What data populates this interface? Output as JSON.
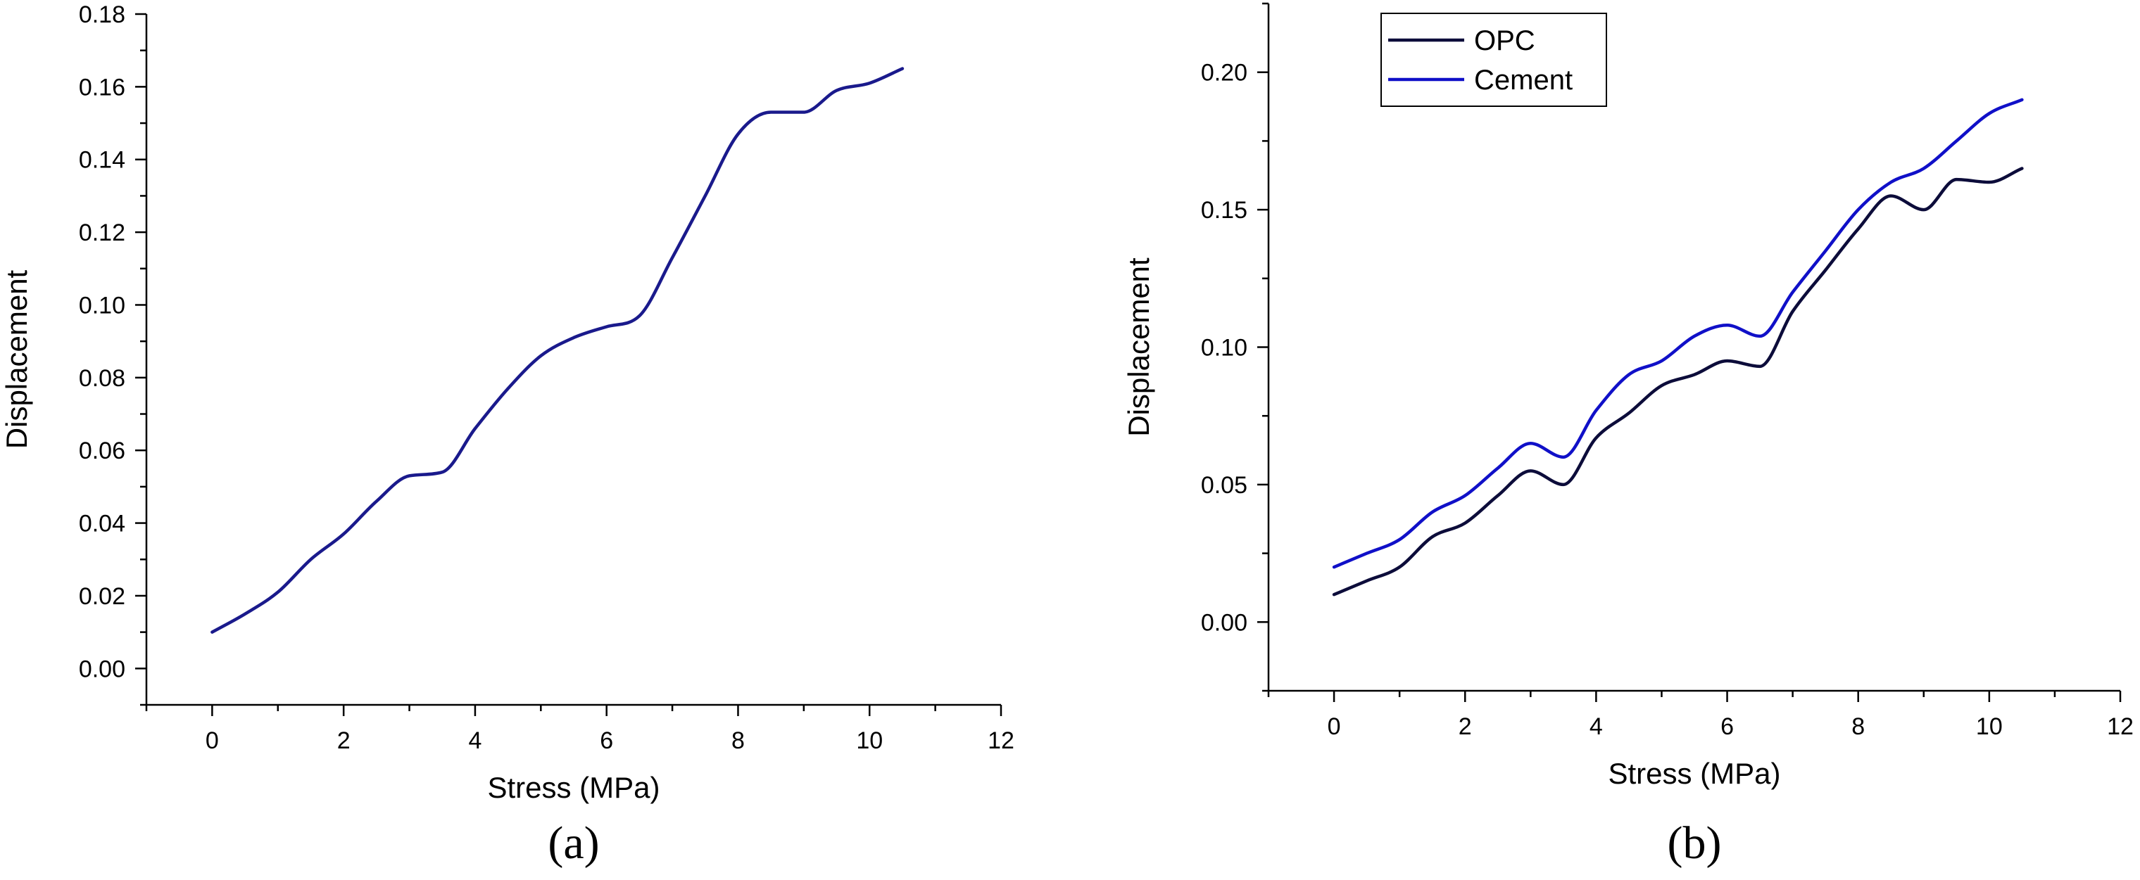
{
  "chart_data": [
    {
      "type": "line",
      "panel_label": "(a)",
      "xlabel": "Stress (MPa)",
      "ylabel": "Displacement",
      "xlim": [
        -1,
        12
      ],
      "ylim": [
        -0.01,
        0.18
      ],
      "xticks": [
        0,
        2,
        4,
        6,
        8,
        10,
        12
      ],
      "xtick_labels": [
        "0",
        "2",
        "4",
        "6",
        "8",
        "10",
        "12"
      ],
      "yticks": [
        0,
        0.02,
        0.04,
        0.06,
        0.08,
        0.1,
        0.12,
        0.14,
        0.16,
        0.18
      ],
      "ytick_labels": [
        "0.00",
        "0.02",
        "0.04",
        "0.06",
        "0.08",
        "0.10",
        "0.12",
        "0.14",
        "0.16",
        "0.18"
      ],
      "grid": false,
      "legend": false,
      "series": [
        {
          "color": "#1a1a8c",
          "x": [
            0,
            0.5,
            1,
            1.5,
            2,
            2.5,
            3,
            3.5,
            4,
            4.5,
            5,
            5.5,
            6,
            6.5,
            7,
            7.5,
            8,
            8.5,
            9,
            9.5,
            10,
            10.5
          ],
          "y": [
            0.01,
            0.015,
            0.021,
            0.03,
            0.037,
            0.046,
            0.053,
            0.054,
            0.066,
            0.077,
            0.086,
            0.091,
            0.094,
            0.097,
            0.113,
            0.13,
            0.147,
            0.153,
            0.153,
            0.159,
            0.161,
            0.165
          ]
        }
      ]
    },
    {
      "type": "line",
      "panel_label": "(b)",
      "xlabel": "Stress (MPa)",
      "ylabel": "Displacement",
      "xlim": [
        -1,
        12
      ],
      "ylim": [
        -0.025,
        0.225
      ],
      "xticks": [
        0,
        2,
        4,
        6,
        8,
        10,
        12
      ],
      "xtick_labels": [
        "0",
        "2",
        "4",
        "6",
        "8",
        "10",
        "12"
      ],
      "yticks": [
        0,
        0.05,
        0.1,
        0.15,
        0.2
      ],
      "ytick_labels": [
        "0.00",
        "0.05",
        "0.10",
        "0.15",
        "0.20"
      ],
      "grid": false,
      "legend": "top-left",
      "series": [
        {
          "name": "OPC",
          "color": "#0c0c3a",
          "x": [
            0,
            0.5,
            1,
            1.5,
            2,
            2.5,
            3,
            3.5,
            4,
            4.5,
            5,
            5.5,
            6,
            6.5,
            7,
            7.5,
            8,
            8.5,
            9,
            9.5,
            10,
            10.5
          ],
          "y": [
            0.01,
            0.015,
            0.02,
            0.031,
            0.036,
            0.046,
            0.055,
            0.05,
            0.067,
            0.076,
            0.086,
            0.09,
            0.095,
            0.093,
            0.113,
            0.128,
            0.143,
            0.155,
            0.15,
            0.161,
            0.16,
            0.165
          ]
        },
        {
          "name": "Cement",
          "color": "#1010c8",
          "x": [
            0,
            0.5,
            1,
            1.5,
            2,
            2.5,
            3,
            3.5,
            4,
            4.5,
            5,
            5.5,
            6,
            6.5,
            7,
            7.5,
            8,
            8.5,
            9,
            9.5,
            10,
            10.5
          ],
          "y": [
            0.02,
            0.025,
            0.03,
            0.04,
            0.046,
            0.056,
            0.065,
            0.06,
            0.077,
            0.09,
            0.095,
            0.104,
            0.108,
            0.104,
            0.12,
            0.135,
            0.15,
            0.16,
            0.165,
            0.175,
            0.185,
            0.19
          ]
        }
      ]
    }
  ]
}
